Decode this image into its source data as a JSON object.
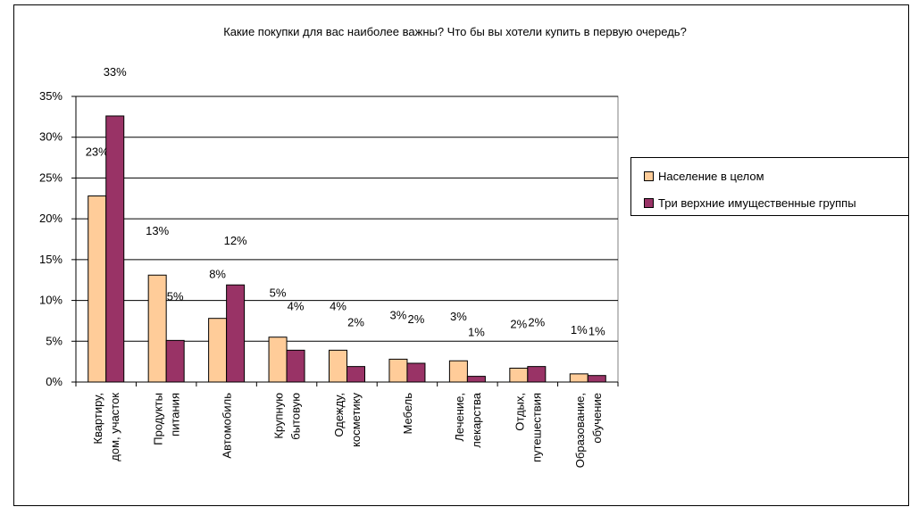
{
  "chart_data": {
    "type": "bar",
    "title": "Какие покупки для вас наиболее важны? Что бы вы хотели купить в первую очередь?",
    "categories": [
      [
        "Квартиру,",
        "дом, участок"
      ],
      [
        "Продукты",
        "питания"
      ],
      [
        "Автомобиль"
      ],
      [
        "Крупную",
        "бытовую"
      ],
      [
        "Одежду,",
        "косметику"
      ],
      [
        "Мебель"
      ],
      [
        "Лечение,",
        "лекарства"
      ],
      [
        "Отдых,",
        "путешествия"
      ],
      [
        "Образование,",
        "обучение"
      ]
    ],
    "series": [
      {
        "name": "Население в целом",
        "color": "#ffcc99",
        "values": [
          22.8,
          13.1,
          7.8,
          5.5,
          3.9,
          2.8,
          2.6,
          1.7,
          1.0
        ],
        "labels": [
          "23%",
          "13%",
          "8%",
          "5%",
          "4%",
          "3%",
          "3%",
          "2%",
          "1%"
        ]
      },
      {
        "name": "Три верхние имущественные группы",
        "color": "#993366",
        "values": [
          32.6,
          5.1,
          11.9,
          3.9,
          1.9,
          2.3,
          0.7,
          1.9,
          0.8
        ],
        "labels": [
          "33%",
          "5%",
          "12%",
          "4%",
          "2%",
          "2%",
          "1%",
          "2%",
          "1%"
        ]
      }
    ],
    "y_ticks": [
      "0%",
      "5%",
      "10%",
      "15%",
      "20%",
      "25%",
      "30%",
      "35%"
    ],
    "ylim": [
      0,
      35
    ],
    "grid": true,
    "legend": "right"
  }
}
